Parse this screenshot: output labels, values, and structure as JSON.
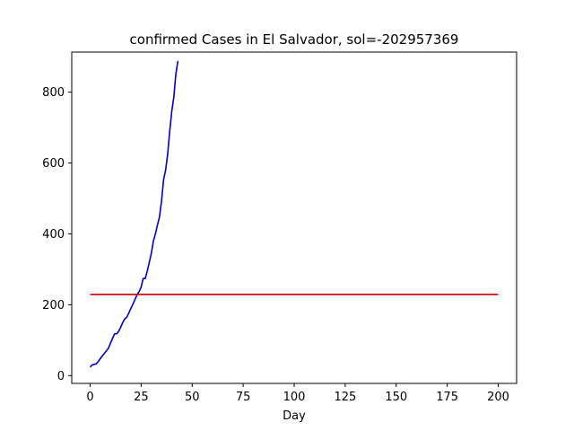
{
  "chart_data": {
    "type": "line",
    "title": "confirmed Cases in El Salvador, sol=-202957369",
    "xlabel": "Day",
    "ylabel": "",
    "xlim": [
      -9,
      209
    ],
    "ylim": [
      -22,
      913
    ],
    "xticks": [
      0,
      25,
      50,
      75,
      100,
      125,
      150,
      175,
      200
    ],
    "yticks": [
      0,
      200,
      400,
      600,
      800
    ],
    "grid": false,
    "series": [
      {
        "color": "#0000cc",
        "x": [
          0,
          1,
          2,
          3,
          4,
          5,
          6,
          7,
          8,
          9,
          10,
          11,
          12,
          13,
          14,
          15,
          16,
          17,
          18,
          19,
          20,
          21,
          22,
          23,
          24,
          25,
          26,
          27,
          28,
          29,
          30,
          31,
          32,
          33,
          34,
          35,
          36,
          37,
          38,
          39,
          40,
          41,
          42,
          43
        ],
        "y": [
          24,
          30,
          32,
          33,
          40,
          48,
          56,
          63,
          70,
          78,
          92,
          105,
          118,
          118,
          125,
          137,
          150,
          160,
          165,
          177,
          190,
          202,
          215,
          228,
          237,
          250,
          274,
          274,
          295,
          320,
          345,
          380,
          400,
          425,
          448,
          493,
          553,
          580,
          625,
          690,
          745,
          785,
          850,
          888
        ]
      },
      {
        "color": "#cc0000",
        "x": [
          0,
          200
        ],
        "y": [
          229,
          229
        ]
      }
    ]
  }
}
